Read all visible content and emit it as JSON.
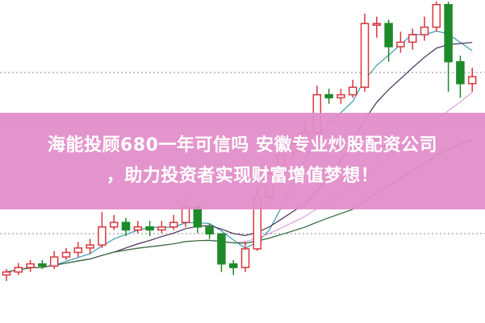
{
  "chart_data": {
    "type": "candlestick",
    "title": "",
    "xlabel": "",
    "ylabel": "",
    "ylim": [
      0,
      100
    ],
    "grid": "horizontal dotted",
    "up_color": "#d9363e",
    "down_color": "#1e8a2a",
    "moving_average_colors": [
      "#3a9bb0",
      "#4a2f5a",
      "#e39be0",
      "#2f6a3a"
    ],
    "moving_average_periods": [
      5,
      10,
      20,
      30
    ],
    "candles": [
      [
        9,
        11,
        7,
        10
      ],
      [
        10,
        13,
        9,
        11.5
      ],
      [
        11.5,
        14,
        10,
        12.7
      ],
      [
        12.7,
        14,
        11,
        12
      ],
      [
        12,
        17,
        11,
        15
      ],
      [
        15,
        18,
        14,
        16.5
      ],
      [
        16.5,
        20,
        15,
        18
      ],
      [
        18,
        21,
        16,
        19
      ],
      [
        19,
        30,
        18,
        25
      ],
      [
        25,
        29,
        24,
        26.5
      ],
      [
        26.5,
        28,
        22,
        24
      ],
      [
        24,
        27,
        23,
        25
      ],
      [
        25,
        27,
        22,
        24
      ],
      [
        24,
        27,
        23,
        25
      ],
      [
        25,
        29,
        24,
        26.5
      ],
      [
        26.5,
        35,
        25,
        31.5
      ],
      [
        31.5,
        33,
        23,
        25
      ],
      [
        25,
        26,
        21,
        22.7
      ],
      [
        22.7,
        23,
        10,
        12.7
      ],
      [
        12.7,
        14,
        9,
        11.5
      ],
      [
        11.5,
        20,
        10,
        17.7
      ],
      [
        17.7,
        38,
        17,
        35
      ],
      [
        35,
        45,
        33,
        42.7
      ],
      [
        42.7,
        52,
        40,
        50
      ],
      [
        50,
        55,
        48,
        52.7
      ],
      [
        52.7,
        60,
        50,
        56.5
      ],
      [
        56.5,
        72,
        55,
        69
      ],
      [
        69,
        71,
        66,
        68
      ],
      [
        68,
        71,
        66,
        69
      ],
      [
        69,
        74,
        68,
        71.5
      ],
      [
        71.5,
        96,
        70,
        92.7
      ],
      [
        92.7,
        95,
        88,
        92.7
      ],
      [
        92.7,
        94,
        80,
        85
      ],
      [
        85,
        90,
        83,
        86.5
      ],
      [
        86.5,
        91,
        84,
        89
      ],
      [
        89,
        95,
        87,
        91.5
      ],
      [
        91.5,
        100,
        90,
        99
      ],
      [
        99,
        100,
        70,
        80
      ],
      [
        80,
        82,
        68,
        72.7
      ],
      [
        72.7,
        78,
        70,
        75
      ]
    ]
  },
  "banner": {
    "line1": "海能投顾680一年可信吗 安徽专业炒股配资公司",
    "line2": "，助力投资者实现财富增值梦想！"
  }
}
